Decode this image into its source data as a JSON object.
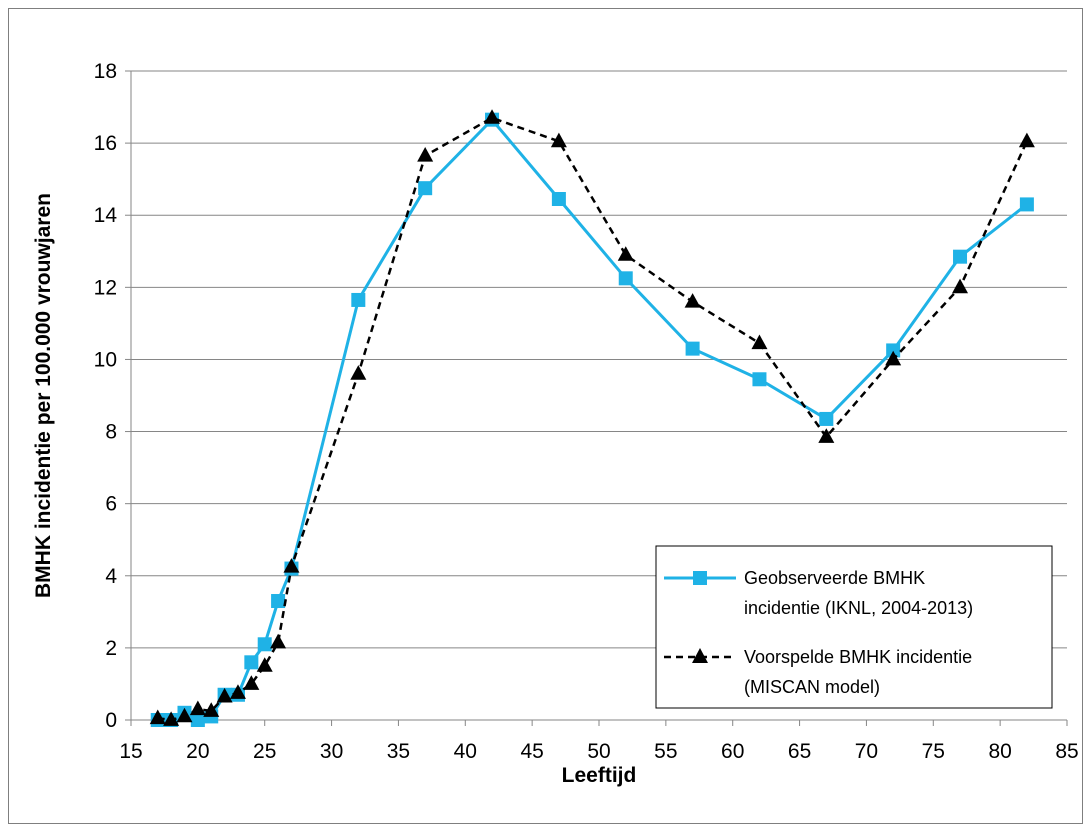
{
  "chart_data": {
    "type": "line",
    "title": "",
    "xlabel": "Leeftijd",
    "ylabel": "BMHK incidentie per 100.000 vrouwjaren",
    "xlim": [
      15,
      85
    ],
    "ylim": [
      0,
      18
    ],
    "x_ticks": [
      "15",
      "20",
      "25",
      "30",
      "35",
      "40",
      "45",
      "50",
      "55",
      "60",
      "65",
      "70",
      "75",
      "80",
      "85"
    ],
    "y_ticks": [
      "0",
      "2",
      "4",
      "6",
      "8",
      "10",
      "12",
      "14",
      "16",
      "18"
    ],
    "grid": "horizontal",
    "legend_position": "bottom-right",
    "series": [
      {
        "name_lines": [
          "Geobserveerde BMHK",
          "incidentie (IKNL, 2004-2013)"
        ],
        "name": "Geobserveerde BMHK incidentie (IKNL, 2004-2013)",
        "color": "#1fb2e6",
        "marker": "square",
        "line_style": "solid",
        "x": [
          17,
          18,
          19,
          20,
          21,
          22,
          23,
          24,
          25,
          26,
          27,
          32,
          37,
          42,
          47,
          52,
          57,
          62,
          67,
          72,
          77,
          82
        ],
        "y": [
          0.0,
          0.0,
          0.2,
          0.0,
          0.1,
          0.7,
          0.7,
          1.6,
          2.1,
          3.3,
          4.2,
          11.65,
          14.75,
          16.65,
          14.45,
          12.25,
          10.3,
          9.45,
          8.35,
          10.25,
          12.85,
          14.3
        ]
      },
      {
        "name_lines": [
          "Voorspelde BMHK incidentie",
          "(MISCAN model)"
        ],
        "name": "Voorspelde BMHK incidentie (MISCAN model)",
        "color": "#000000",
        "marker": "triangle",
        "line_style": "dashed",
        "x": [
          17,
          18,
          19,
          20,
          21,
          22,
          23,
          24,
          25,
          26,
          27,
          32,
          37,
          42,
          47,
          52,
          57,
          62,
          67,
          72,
          77,
          82
        ],
        "y": [
          0.05,
          0.0,
          0.1,
          0.3,
          0.25,
          0.65,
          0.75,
          1.0,
          1.5,
          2.15,
          4.25,
          9.6,
          15.65,
          16.7,
          16.05,
          12.9,
          11.6,
          10.45,
          7.85,
          10.0,
          12.0,
          16.05
        ]
      }
    ]
  }
}
